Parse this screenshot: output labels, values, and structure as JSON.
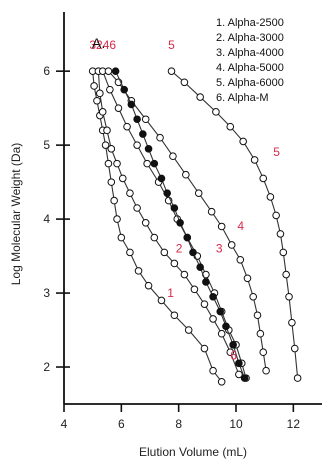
{
  "chart_data": {
    "type": "line",
    "panel_label": "A.",
    "xlabel": "Elution Volume (mL)",
    "ylabel": "Log Molecular Weight (Da)",
    "xlim": [
      4,
      13
    ],
    "ylim": [
      1.5,
      6.8
    ],
    "xticks": [
      "4",
      "6",
      "8",
      "10",
      "12"
    ],
    "yticks": [
      "2",
      "3",
      "4",
      "5",
      "6"
    ],
    "accent_color": "#d62a4a",
    "legend": [
      "1. Alpha-2500",
      "2. Alpha-3000",
      "3. Alpha-4000",
      "4. Alpha-5000",
      "5. Alpha-6000",
      "6. Alpha-M"
    ],
    "top_labels": {
      "text": "3246",
      "near": {
        "x": 5.35,
        "y": 6.3
      }
    },
    "series": [
      {
        "key": "s1",
        "label": "1",
        "label_at": {
          "x": 7.6,
          "y": 2.95
        },
        "marker": "open",
        "points": [
          {
            "x": 5.0,
            "y": 6.0
          },
          {
            "x": 5.05,
            "y": 5.8
          },
          {
            "x": 5.15,
            "y": 5.6
          },
          {
            "x": 5.25,
            "y": 5.4
          },
          {
            "x": 5.35,
            "y": 5.2
          },
          {
            "x": 5.45,
            "y": 5.0
          },
          {
            "x": 5.55,
            "y": 4.75
          },
          {
            "x": 5.65,
            "y": 4.5
          },
          {
            "x": 5.75,
            "y": 4.25
          },
          {
            "x": 5.85,
            "y": 4.0
          },
          {
            "x": 6.0,
            "y": 3.75
          },
          {
            "x": 6.3,
            "y": 3.55
          },
          {
            "x": 6.6,
            "y": 3.3
          },
          {
            "x": 6.95,
            "y": 3.1
          },
          {
            "x": 7.4,
            "y": 2.9
          },
          {
            "x": 7.85,
            "y": 2.7
          },
          {
            "x": 8.35,
            "y": 2.5
          },
          {
            "x": 8.9,
            "y": 2.25
          },
          {
            "x": 9.2,
            "y": 1.95
          },
          {
            "x": 9.5,
            "y": 1.8
          }
        ]
      },
      {
        "key": "s2",
        "label": "2",
        "label_at": {
          "x": 7.9,
          "y": 3.55
        },
        "marker": "open",
        "points": [
          {
            "x": 5.2,
            "y": 6.0
          },
          {
            "x": 5.25,
            "y": 5.7
          },
          {
            "x": 5.35,
            "y": 5.45
          },
          {
            "x": 5.5,
            "y": 5.2
          },
          {
            "x": 5.65,
            "y": 4.95
          },
          {
            "x": 5.85,
            "y": 4.75
          },
          {
            "x": 6.05,
            "y": 4.55
          },
          {
            "x": 6.3,
            "y": 4.35
          },
          {
            "x": 6.55,
            "y": 4.15
          },
          {
            "x": 6.85,
            "y": 3.95
          },
          {
            "x": 7.15,
            "y": 3.75
          },
          {
            "x": 7.5,
            "y": 3.55
          },
          {
            "x": 7.85,
            "y": 3.4
          },
          {
            "x": 8.2,
            "y": 3.25
          },
          {
            "x": 8.55,
            "y": 3.05
          },
          {
            "x": 8.9,
            "y": 2.85
          },
          {
            "x": 9.2,
            "y": 2.65
          },
          {
            "x": 9.5,
            "y": 2.45
          },
          {
            "x": 9.8,
            "y": 2.2
          },
          {
            "x": 10.1,
            "y": 1.9
          }
        ]
      },
      {
        "key": "s3",
        "label": "3",
        "label_at": {
          "x": 9.3,
          "y": 3.55
        },
        "marker": "open",
        "points": [
          {
            "x": 5.35,
            "y": 6.0
          },
          {
            "x": 5.6,
            "y": 5.75
          },
          {
            "x": 5.9,
            "y": 5.5
          },
          {
            "x": 6.2,
            "y": 5.25
          },
          {
            "x": 6.55,
            "y": 5.0
          },
          {
            "x": 6.9,
            "y": 4.75
          },
          {
            "x": 7.3,
            "y": 4.5
          },
          {
            "x": 7.65,
            "y": 4.25
          },
          {
            "x": 7.95,
            "y": 4.0
          },
          {
            "x": 8.3,
            "y": 3.75
          },
          {
            "x": 8.65,
            "y": 3.5
          },
          {
            "x": 8.95,
            "y": 3.25
          },
          {
            "x": 9.25,
            "y": 3.0
          },
          {
            "x": 9.5,
            "y": 2.75
          },
          {
            "x": 9.75,
            "y": 2.5
          },
          {
            "x": 10.0,
            "y": 2.3
          },
          {
            "x": 10.2,
            "y": 2.05
          },
          {
            "x": 10.35,
            "y": 1.85
          }
        ]
      },
      {
        "key": "s4",
        "label": "4",
        "label_at": {
          "x": 10.05,
          "y": 3.85
        },
        "marker": "open",
        "points": [
          {
            "x": 5.55,
            "y": 6.0
          },
          {
            "x": 5.9,
            "y": 5.85
          },
          {
            "x": 6.35,
            "y": 5.6
          },
          {
            "x": 6.85,
            "y": 5.35
          },
          {
            "x": 7.35,
            "y": 5.1
          },
          {
            "x": 7.8,
            "y": 4.85
          },
          {
            "x": 8.25,
            "y": 4.6
          },
          {
            "x": 8.7,
            "y": 4.35
          },
          {
            "x": 9.15,
            "y": 4.1
          },
          {
            "x": 9.5,
            "y": 3.9
          },
          {
            "x": 9.85,
            "y": 3.65
          },
          {
            "x": 10.15,
            "y": 3.45
          },
          {
            "x": 10.4,
            "y": 3.2
          },
          {
            "x": 10.6,
            "y": 2.95
          },
          {
            "x": 10.75,
            "y": 2.7
          },
          {
            "x": 10.85,
            "y": 2.45
          },
          {
            "x": 10.95,
            "y": 2.2
          },
          {
            "x": 11.05,
            "y": 1.95
          }
        ]
      },
      {
        "key": "s5",
        "label": "5",
        "label_at": {
          "x": 11.3,
          "y": 4.85
        },
        "marker": "open",
        "points": [
          {
            "x": 7.75,
            "y": 6.0
          },
          {
            "x": 8.2,
            "y": 5.85
          },
          {
            "x": 8.75,
            "y": 5.65
          },
          {
            "x": 9.3,
            "y": 5.45
          },
          {
            "x": 9.8,
            "y": 5.25
          },
          {
            "x": 10.25,
            "y": 5.05
          },
          {
            "x": 10.65,
            "y": 4.8
          },
          {
            "x": 10.95,
            "y": 4.55
          },
          {
            "x": 11.2,
            "y": 4.3
          },
          {
            "x": 11.4,
            "y": 4.05
          },
          {
            "x": 11.55,
            "y": 3.8
          },
          {
            "x": 11.65,
            "y": 3.55
          },
          {
            "x": 11.75,
            "y": 3.25
          },
          {
            "x": 11.85,
            "y": 2.95
          },
          {
            "x": 11.95,
            "y": 2.6
          },
          {
            "x": 12.05,
            "y": 2.25
          },
          {
            "x": 12.15,
            "y": 1.85
          }
        ]
      },
      {
        "key": "s6",
        "label": "6",
        "label_at": {
          "x": 9.8,
          "y": 2.1
        },
        "marker": "filled",
        "points": [
          {
            "x": 5.8,
            "y": 6.0
          },
          {
            "x": 6.1,
            "y": 5.75
          },
          {
            "x": 6.35,
            "y": 5.55
          },
          {
            "x": 6.55,
            "y": 5.35
          },
          {
            "x": 6.75,
            "y": 5.15
          },
          {
            "x": 6.95,
            "y": 4.95
          },
          {
            "x": 7.15,
            "y": 4.75
          },
          {
            "x": 7.4,
            "y": 4.55
          },
          {
            "x": 7.6,
            "y": 4.35
          },
          {
            "x": 7.85,
            "y": 4.15
          },
          {
            "x": 8.05,
            "y": 3.95
          },
          {
            "x": 8.3,
            "y": 3.75
          },
          {
            "x": 8.5,
            "y": 3.55
          },
          {
            "x": 8.75,
            "y": 3.35
          },
          {
            "x": 8.95,
            "y": 3.15
          },
          {
            "x": 9.2,
            "y": 2.95
          },
          {
            "x": 9.45,
            "y": 2.75
          },
          {
            "x": 9.65,
            "y": 2.55
          },
          {
            "x": 9.9,
            "y": 2.3
          },
          {
            "x": 10.1,
            "y": 2.05
          },
          {
            "x": 10.3,
            "y": 1.85
          }
        ]
      }
    ]
  }
}
